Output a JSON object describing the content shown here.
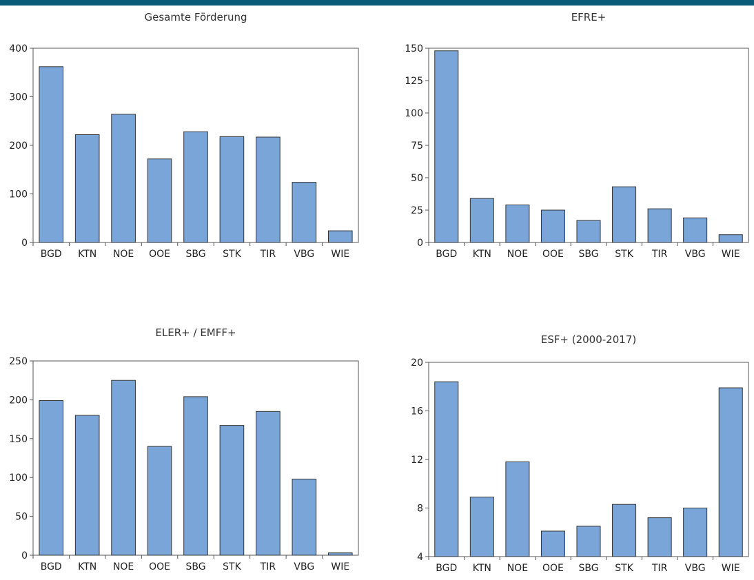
{
  "colors": {
    "top_bar": "#0a5a7a",
    "bar_fill": "#7aa5d9",
    "bar_stroke": "#333333",
    "frame": "#555555"
  },
  "chart_data": [
    {
      "type": "bar",
      "title": "Gesamte Förderung",
      "categories": [
        "BGD",
        "KTN",
        "NOE",
        "OOE",
        "SBG",
        "STK",
        "TIR",
        "VBG",
        "WIE"
      ],
      "values": [
        362,
        222,
        264,
        172,
        228,
        218,
        217,
        124,
        24
      ],
      "ylim": [
        0,
        400
      ],
      "yticks": [
        0,
        100,
        200,
        300,
        400
      ],
      "grid": false
    },
    {
      "type": "bar",
      "title": "EFRE+",
      "categories": [
        "BGD",
        "KTN",
        "NOE",
        "OOE",
        "SBG",
        "STK",
        "TIR",
        "VBG",
        "WIE"
      ],
      "values": [
        148,
        34,
        29,
        25,
        17,
        43,
        26,
        19,
        6
      ],
      "ylim": [
        0,
        150
      ],
      "yticks": [
        0,
        25,
        50,
        75,
        100,
        125,
        150
      ],
      "grid": false
    },
    {
      "type": "bar",
      "title": "ELER+ / EMFF+",
      "categories": [
        "BGD",
        "KTN",
        "NOE",
        "OOE",
        "SBG",
        "STK",
        "TIR",
        "VBG",
        "WIE"
      ],
      "values": [
        199,
        180,
        225,
        140,
        204,
        167,
        185,
        98,
        3
      ],
      "ylim": [
        0,
        250
      ],
      "yticks": [
        0,
        50,
        100,
        150,
        200,
        250
      ],
      "grid": false
    },
    {
      "type": "bar",
      "title": "ESF+ (2000-2017)",
      "categories": [
        "BGD",
        "KTN",
        "NOE",
        "OOE",
        "SBG",
        "STK",
        "TIR",
        "VBG",
        "WIE"
      ],
      "values": [
        18.4,
        8.9,
        11.8,
        6.1,
        6.5,
        8.3,
        7.2,
        8.0,
        17.9
      ],
      "ylim": [
        4,
        20
      ],
      "yticks": [
        4,
        8,
        12,
        16,
        20
      ],
      "grid": false
    }
  ]
}
